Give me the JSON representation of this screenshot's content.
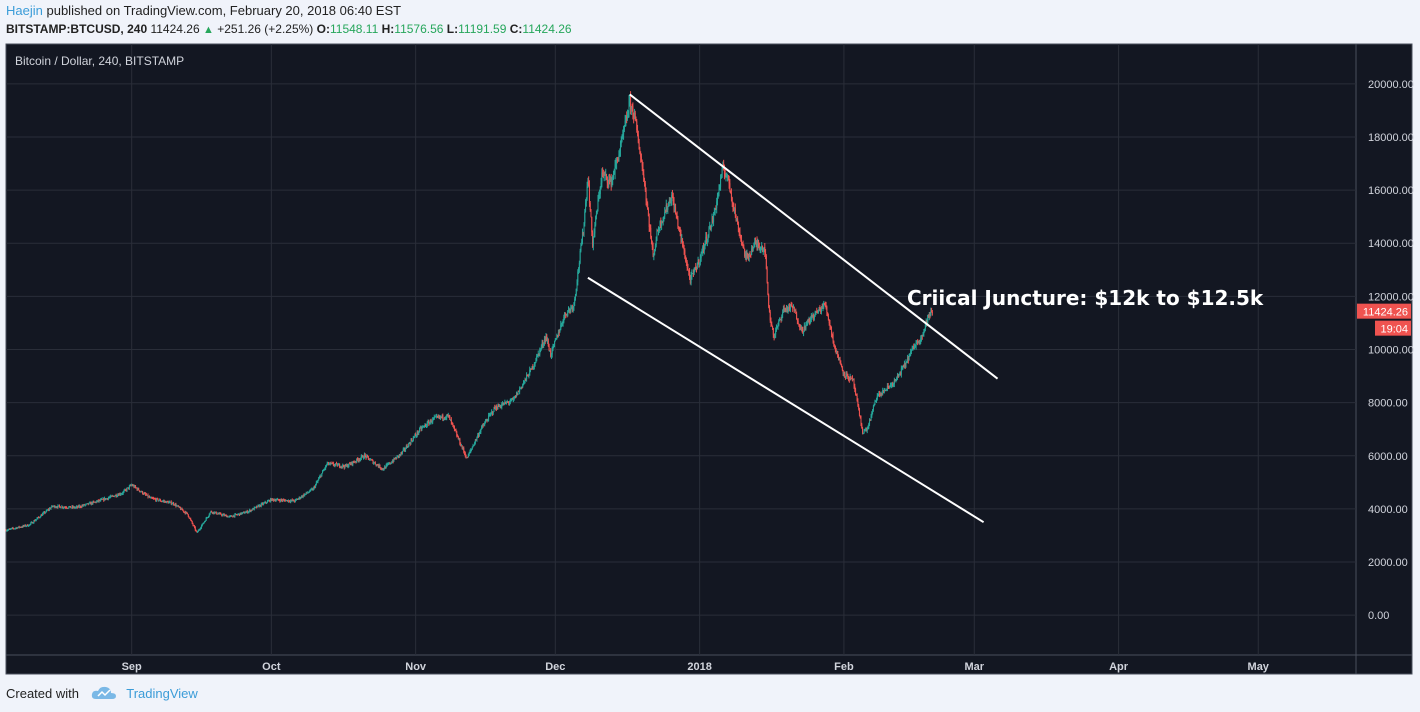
{
  "header": {
    "author": "Haejin",
    "published_text": "published on TradingView.com, February 20, 2018 06:40 EST",
    "symbol": "BITSTAMP:BTCUSD, 240",
    "last": "11424.26",
    "change": "+251.26 (+2.25%)",
    "open_label": "O:",
    "open": "11548.11",
    "high_label": "H:",
    "high": "11576.56",
    "low_label": "L:",
    "low": "11191.59",
    "close_label": "C:",
    "close": "11424.26"
  },
  "footer": {
    "created_with": "Created with",
    "brand": "TradingView",
    "logo_icon": "tradingview-cloud-icon"
  },
  "chart_data": {
    "type": "candlestick",
    "title": "Bitcoin / Dollar, 240, BITSTAMP",
    "annotation": "Criical Juncture: $12k to $12.5k",
    "colors": {
      "background": "#131722",
      "up": "#26a69a",
      "down": "#ef5350",
      "grid": "#2a2e39",
      "trendline": "#ffffff",
      "price_tag": "#ef5350"
    },
    "price_tag": {
      "price": "11424.26",
      "countdown": "19:04"
    },
    "x_ticks": [
      {
        "label": "Sep",
        "date": "2017-09-01"
      },
      {
        "label": "Oct",
        "date": "2017-10-01"
      },
      {
        "label": "Nov",
        "date": "2017-11-01"
      },
      {
        "label": "Dec",
        "date": "2017-12-01"
      },
      {
        "label": "2018",
        "date": "2018-01-01"
      },
      {
        "label": "Feb",
        "date": "2018-02-01"
      },
      {
        "label": "Mar",
        "date": "2018-03-01"
      },
      {
        "label": "Apr",
        "date": "2018-04-01"
      },
      {
        "label": "May",
        "date": "2018-05-01"
      }
    ],
    "xlim": [
      "2017-08-05",
      "2018-05-22"
    ],
    "y_ticks": [
      "0.00",
      "2000.00",
      "4000.00",
      "6000.00",
      "8000.00",
      "10000.00",
      "12000.00",
      "14000.00",
      "16000.00",
      "18000.00",
      "20000.00"
    ],
    "ylim": [
      -1500,
      21500
    ],
    "series": [
      {
        "values": [
          [
            "2017-08-05",
            3200
          ],
          [
            "2017-08-10",
            3400
          ],
          [
            "2017-08-15",
            4100
          ],
          [
            "2017-08-20",
            4050
          ],
          [
            "2017-08-25",
            4300
          ],
          [
            "2017-08-30",
            4600
          ],
          [
            "2017-09-01",
            4900
          ],
          [
            "2017-09-05",
            4400
          ],
          [
            "2017-09-10",
            4200
          ],
          [
            "2017-09-13",
            3800
          ],
          [
            "2017-09-15",
            3100
          ],
          [
            "2017-09-18",
            3900
          ],
          [
            "2017-09-22",
            3700
          ],
          [
            "2017-09-26",
            3900
          ],
          [
            "2017-10-01",
            4350
          ],
          [
            "2017-10-06",
            4300
          ],
          [
            "2017-10-10",
            4750
          ],
          [
            "2017-10-13",
            5700
          ],
          [
            "2017-10-17",
            5600
          ],
          [
            "2017-10-21",
            6000
          ],
          [
            "2017-10-25",
            5500
          ],
          [
            "2017-10-29",
            6100
          ],
          [
            "2017-11-02",
            7000
          ],
          [
            "2017-11-05",
            7400
          ],
          [
            "2017-11-08",
            7500
          ],
          [
            "2017-11-10",
            6700
          ],
          [
            "2017-11-12",
            5900
          ],
          [
            "2017-11-15",
            7000
          ],
          [
            "2017-11-18",
            7800
          ],
          [
            "2017-11-22",
            8100
          ],
          [
            "2017-11-26",
            9300
          ],
          [
            "2017-11-29",
            10500
          ],
          [
            "2017-11-30",
            9800
          ],
          [
            "2017-12-03",
            11300
          ],
          [
            "2017-12-05",
            11700
          ],
          [
            "2017-12-07",
            14500
          ],
          [
            "2017-12-08",
            16500
          ],
          [
            "2017-12-09",
            14000
          ],
          [
            "2017-12-11",
            16600
          ],
          [
            "2017-12-13",
            16300
          ],
          [
            "2017-12-15",
            17600
          ],
          [
            "2017-12-17",
            19300
          ],
          [
            "2017-12-18",
            18800
          ],
          [
            "2017-12-20",
            16500
          ],
          [
            "2017-12-22",
            13500
          ],
          [
            "2017-12-23",
            14500
          ],
          [
            "2017-12-26",
            15800
          ],
          [
            "2017-12-28",
            14200
          ],
          [
            "2017-12-30",
            12600
          ],
          [
            "2018-01-01",
            13400
          ],
          [
            "2018-01-04",
            15000
          ],
          [
            "2018-01-06",
            16800
          ],
          [
            "2018-01-07",
            16500
          ],
          [
            "2018-01-09",
            14800
          ],
          [
            "2018-01-11",
            13400
          ],
          [
            "2018-01-13",
            14000
          ],
          [
            "2018-01-15",
            13800
          ],
          [
            "2018-01-16",
            11300
          ],
          [
            "2018-01-17",
            10500
          ],
          [
            "2018-01-19",
            11500
          ],
          [
            "2018-01-21",
            11600
          ],
          [
            "2018-01-23",
            10700
          ],
          [
            "2018-01-25",
            11200
          ],
          [
            "2018-01-28",
            11700
          ],
          [
            "2018-01-30",
            10100
          ],
          [
            "2018-02-01",
            9100
          ],
          [
            "2018-02-03",
            8800
          ],
          [
            "2018-02-05",
            6900
          ],
          [
            "2018-02-06",
            7000
          ],
          [
            "2018-02-08",
            8200
          ],
          [
            "2018-02-10",
            8500
          ],
          [
            "2018-02-12",
            8800
          ],
          [
            "2018-02-14",
            9400
          ],
          [
            "2018-02-16",
            10100
          ],
          [
            "2018-02-18",
            10600
          ],
          [
            "2018-02-19",
            11200
          ],
          [
            "2018-02-20",
            11424
          ]
        ]
      }
    ],
    "trendlines": [
      {
        "from": [
          "2017-12-17",
          19600
        ],
        "to": [
          "2018-03-06",
          8900
        ]
      },
      {
        "from": [
          "2017-12-08",
          12700
        ],
        "to": [
          "2018-03-03",
          3500
        ]
      }
    ]
  }
}
